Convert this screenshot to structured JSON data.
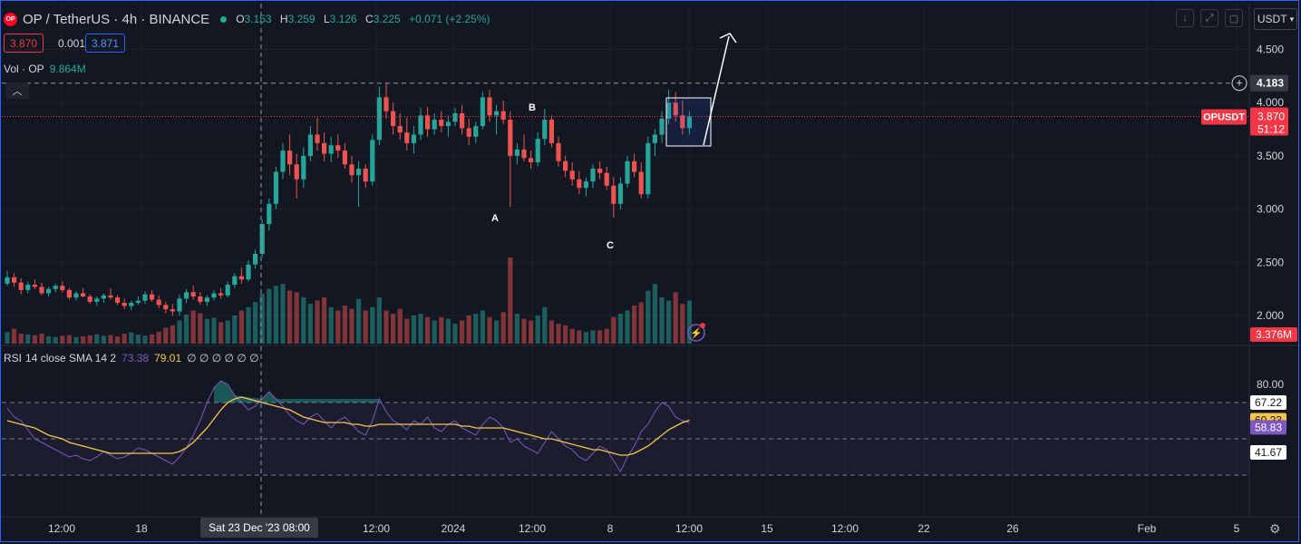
{
  "header": {
    "logo_text": "OP",
    "symbol": "OP / TetherUS · 4h · BINANCE",
    "o_label": "O",
    "o": "3.153",
    "h_label": "H",
    "h": "3.259",
    "l_label": "L",
    "l": "3.126",
    "c_label": "C",
    "c": "3.225",
    "change": "+0.071 (+2.25%)"
  },
  "trade": {
    "sell": "3.870",
    "spread": "0.001",
    "buy": "3.871"
  },
  "volume_legend": {
    "label": "Vol · OP",
    "value": "9.864M"
  },
  "rsi_legend": {
    "label": "RSI",
    "params": "14 close SMA 14 2",
    "rsi": "73.38",
    "sma": "79.01",
    "rest": "∅ ∅ ∅ ∅ ∅ ∅"
  },
  "toolbar": {
    "currency": "USDT"
  },
  "colors": {
    "up": "#26a69a",
    "down": "#ef5350",
    "rsi": "#7e57c2",
    "sma": "#f7c648",
    "price_tag": "#f23645"
  },
  "chart_data": {
    "type": "candlestick",
    "price_axis": {
      "ticks": [
        "4.500",
        "4.000",
        "3.500",
        "3.000",
        "2.500",
        "2.000"
      ],
      "range": [
        1.72,
        4.93
      ]
    },
    "time_axis": {
      "ticks": [
        "12:00",
        "18",
        "12:00",
        "2024",
        "12:00",
        "8",
        "12:00",
        "15",
        "12:00",
        "22",
        "26",
        "Feb",
        "5"
      ],
      "crosshair_label": "Sat 23 Dec '23   08:00"
    },
    "last_price": {
      "symbol": "OPUSDT",
      "value": "3.870",
      "countdown": "51:12"
    },
    "crosshair_price": "4.183",
    "last_volume": "3.376M",
    "annotations": [
      "A",
      "B",
      "C"
    ],
    "candles": [
      [
        2.3,
        2.42,
        2.28,
        2.36
      ],
      [
        2.36,
        2.4,
        2.27,
        2.31
      ],
      [
        2.31,
        2.35,
        2.2,
        2.24
      ],
      [
        2.24,
        2.32,
        2.21,
        2.29
      ],
      [
        2.29,
        2.34,
        2.25,
        2.27
      ],
      [
        2.27,
        2.31,
        2.19,
        2.21
      ],
      [
        2.21,
        2.27,
        2.18,
        2.25
      ],
      [
        2.25,
        2.3,
        2.22,
        2.28
      ],
      [
        2.28,
        2.32,
        2.22,
        2.24
      ],
      [
        2.24,
        2.26,
        2.15,
        2.17
      ],
      [
        2.17,
        2.23,
        2.14,
        2.21
      ],
      [
        2.21,
        2.26,
        2.17,
        2.18
      ],
      [
        2.18,
        2.2,
        2.11,
        2.13
      ],
      [
        2.13,
        2.18,
        2.09,
        2.16
      ],
      [
        2.16,
        2.21,
        2.12,
        2.19
      ],
      [
        2.19,
        2.26,
        2.15,
        2.17
      ],
      [
        2.17,
        2.19,
        2.1,
        2.12
      ],
      [
        2.12,
        2.16,
        2.06,
        2.09
      ],
      [
        2.09,
        2.14,
        2.05,
        2.12
      ],
      [
        2.12,
        2.18,
        2.1,
        2.14
      ],
      [
        2.14,
        2.23,
        2.11,
        2.2
      ],
      [
        2.2,
        2.24,
        2.13,
        2.15
      ],
      [
        2.15,
        2.19,
        2.07,
        2.1
      ],
      [
        2.1,
        2.13,
        2.02,
        2.06
      ],
      [
        2.06,
        2.11,
        2.0,
        2.04
      ],
      [
        2.04,
        2.2,
        2.0,
        2.16
      ],
      [
        2.16,
        2.25,
        2.12,
        2.22
      ],
      [
        2.22,
        2.28,
        2.15,
        2.18
      ],
      [
        2.18,
        2.22,
        2.1,
        2.13
      ],
      [
        2.13,
        2.19,
        2.09,
        2.17
      ],
      [
        2.17,
        2.24,
        2.14,
        2.21
      ],
      [
        2.21,
        2.26,
        2.16,
        2.19
      ],
      [
        2.19,
        2.32,
        2.17,
        2.29
      ],
      [
        2.29,
        2.4,
        2.26,
        2.37
      ],
      [
        2.37,
        2.45,
        2.3,
        2.34
      ],
      [
        2.34,
        2.52,
        2.32,
        2.48
      ],
      [
        2.48,
        2.62,
        2.44,
        2.58
      ],
      [
        2.58,
        2.9,
        2.55,
        2.86
      ],
      [
        2.86,
        3.1,
        2.8,
        3.05
      ],
      [
        3.05,
        3.4,
        3.0,
        3.35
      ],
      [
        3.35,
        3.62,
        3.28,
        3.55
      ],
      [
        3.55,
        3.7,
        3.32,
        3.42
      ],
      [
        3.42,
        3.52,
        3.1,
        3.28
      ],
      [
        3.28,
        3.58,
        3.2,
        3.5
      ],
      [
        3.5,
        3.78,
        3.45,
        3.7
      ],
      [
        3.7,
        3.86,
        3.55,
        3.62
      ],
      [
        3.62,
        3.72,
        3.45,
        3.52
      ],
      [
        3.52,
        3.68,
        3.44,
        3.6
      ],
      [
        3.6,
        3.7,
        3.48,
        3.55
      ],
      [
        3.55,
        3.62,
        3.38,
        3.42
      ],
      [
        3.42,
        3.5,
        3.25,
        3.32
      ],
      [
        3.32,
        3.45,
        3.02,
        3.38
      ],
      [
        3.38,
        3.42,
        3.2,
        3.26
      ],
      [
        3.26,
        3.7,
        3.22,
        3.65
      ],
      [
        3.65,
        4.15,
        3.6,
        4.05
      ],
      [
        4.05,
        4.18,
        3.85,
        3.92
      ],
      [
        3.92,
        4.0,
        3.7,
        3.78
      ],
      [
        3.78,
        3.9,
        3.65,
        3.72
      ],
      [
        3.72,
        3.86,
        3.55,
        3.62
      ],
      [
        3.62,
        3.78,
        3.52,
        3.7
      ],
      [
        3.7,
        3.95,
        3.65,
        3.88
      ],
      [
        3.88,
        3.96,
        3.68,
        3.75
      ],
      [
        3.75,
        3.9,
        3.7,
        3.84
      ],
      [
        3.84,
        3.92,
        3.72,
        3.78
      ],
      [
        3.78,
        3.88,
        3.68,
        3.82
      ],
      [
        3.82,
        3.95,
        3.78,
        3.9
      ],
      [
        3.9,
        3.98,
        3.7,
        3.76
      ],
      [
        3.76,
        3.85,
        3.6,
        3.68
      ],
      [
        3.68,
        3.82,
        3.62,
        3.78
      ],
      [
        3.78,
        4.1,
        3.75,
        4.05
      ],
      [
        4.05,
        4.12,
        3.82,
        3.88
      ],
      [
        3.88,
        3.98,
        3.7,
        3.92
      ],
      [
        3.92,
        4.02,
        3.8,
        3.84
      ],
      [
        3.84,
        3.92,
        3.02,
        3.5
      ],
      [
        3.5,
        3.62,
        3.42,
        3.56
      ],
      [
        3.56,
        3.7,
        3.45,
        3.48
      ],
      [
        3.48,
        3.55,
        3.38,
        3.44
      ],
      [
        3.44,
        3.72,
        3.4,
        3.66
      ],
      [
        3.66,
        3.94,
        3.6,
        3.84
      ],
      [
        3.84,
        3.88,
        3.58,
        3.62
      ],
      [
        3.62,
        3.68,
        3.4,
        3.45
      ],
      [
        3.45,
        3.5,
        3.3,
        3.36
      ],
      [
        3.36,
        3.44,
        3.22,
        3.28
      ],
      [
        3.28,
        3.36,
        3.14,
        3.2
      ],
      [
        3.2,
        3.3,
        3.12,
        3.26
      ],
      [
        3.26,
        3.42,
        3.2,
        3.38
      ],
      [
        3.38,
        3.45,
        3.28,
        3.34
      ],
      [
        3.34,
        3.4,
        3.18,
        3.22
      ],
      [
        3.22,
        3.3,
        2.92,
        3.05
      ],
      [
        3.05,
        3.3,
        3.0,
        3.24
      ],
      [
        3.24,
        3.5,
        3.2,
        3.45
      ],
      [
        3.45,
        3.52,
        3.3,
        3.35
      ],
      [
        3.35,
        3.44,
        3.1,
        3.14
      ],
      [
        3.14,
        3.68,
        3.1,
        3.62
      ],
      [
        3.62,
        3.75,
        3.5,
        3.7
      ],
      [
        3.7,
        3.92,
        3.62,
        3.85
      ],
      [
        3.85,
        4.12,
        3.8,
        4.0
      ],
      [
        4.0,
        4.1,
        3.82,
        3.88
      ],
      [
        3.88,
        4.02,
        3.7,
        3.76
      ],
      [
        3.76,
        3.92,
        3.7,
        3.87
      ]
    ],
    "volume": [
      0.35,
      0.45,
      0.3,
      0.28,
      0.25,
      0.3,
      0.22,
      0.2,
      0.24,
      0.26,
      0.2,
      0.22,
      0.25,
      0.28,
      0.24,
      0.26,
      0.22,
      0.3,
      0.34,
      0.27,
      0.24,
      0.28,
      0.36,
      0.48,
      0.55,
      0.7,
      0.88,
      1.0,
      0.92,
      0.75,
      0.78,
      0.65,
      0.7,
      0.85,
      1.0,
      1.1,
      1.25,
      1.5,
      1.65,
      1.75,
      1.8,
      1.6,
      1.55,
      1.4,
      1.2,
      1.3,
      1.4,
      1.1,
      1.0,
      1.15,
      1.05,
      1.35,
      1.0,
      1.1,
      1.4,
      1.0,
      0.9,
      1.05,
      0.75,
      0.85,
      0.9,
      0.8,
      0.7,
      0.8,
      0.75,
      0.6,
      0.7,
      0.85,
      0.9,
      1.0,
      0.8,
      0.7,
      0.95,
      2.6,
      0.9,
      0.75,
      0.7,
      0.85,
      1.1,
      0.7,
      0.6,
      0.55,
      0.45,
      0.4,
      0.35,
      0.4,
      0.4,
      0.45,
      0.8,
      0.9,
      1.0,
      1.15,
      1.25,
      1.6,
      1.8,
      1.4,
      1.3,
      1.55,
      1.2,
      1.3
    ],
    "rsi_axis": {
      "ticks": [
        "80.00"
      ],
      "bands": [
        70,
        50,
        30
      ]
    },
    "rsi_labels": {
      "upper": "67.22",
      "sma": "60.23",
      "rsi": "58.83",
      "lower": "41.67"
    },
    "rsi": [
      67,
      62,
      60,
      55,
      50,
      48,
      46,
      44,
      42,
      40,
      41,
      39,
      38,
      40,
      43,
      41,
      39,
      40,
      42,
      45,
      44,
      42,
      40,
      38,
      36,
      40,
      45,
      52,
      60,
      70,
      78,
      82,
      80,
      74,
      70,
      66,
      68,
      72,
      76,
      72,
      68,
      63,
      60,
      58,
      62,
      64,
      60,
      56,
      60,
      62,
      58,
      54,
      52,
      60,
      72,
      65,
      60,
      58,
      55,
      60,
      58,
      62,
      56,
      54,
      58,
      60,
      56,
      54,
      52,
      58,
      62,
      60,
      56,
      48,
      50,
      46,
      44,
      42,
      48,
      54,
      50,
      46,
      44,
      40,
      38,
      42,
      46,
      44,
      38,
      32,
      40,
      46,
      54,
      58,
      65,
      70,
      68,
      62,
      60,
      58.83
    ],
    "rsi_sma": [
      60,
      59,
      58,
      57,
      56,
      54,
      52,
      51,
      50,
      48,
      47,
      46,
      45,
      44,
      43,
      42,
      42,
      42,
      42,
      42,
      42,
      42,
      42,
      42,
      42,
      43,
      45,
      48,
      52,
      56,
      61,
      66,
      70,
      72,
      73,
      72,
      71,
      70,
      69,
      68,
      67,
      66,
      64,
      62,
      61,
      60,
      59,
      59,
      59,
      59,
      58,
      58,
      57,
      57,
      58,
      58,
      58,
      58,
      58,
      58,
      58,
      58,
      58,
      58,
      58,
      58,
      57,
      57,
      56,
      56,
      56,
      56,
      56,
      55,
      54,
      53,
      52,
      51,
      50,
      50,
      49,
      48,
      47,
      46,
      45,
      44,
      44,
      43,
      42,
      41,
      41,
      42,
      44,
      46,
      49,
      52,
      55,
      57,
      59,
      60.23
    ]
  }
}
